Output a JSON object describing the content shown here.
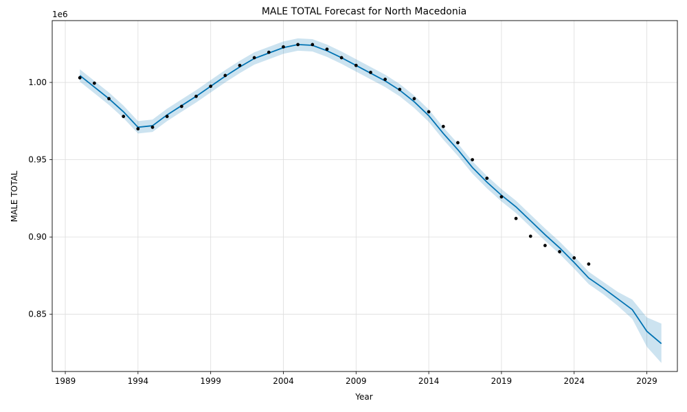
{
  "chart_data": {
    "type": "line",
    "title": "MALE TOTAL Forecast for North Macedonia",
    "xlabel": "Year",
    "ylabel": "MALE TOTAL",
    "y_offset_label": "1e6",
    "xlim": [
      1988.1,
      2031.1
    ],
    "ylim": [
      813000,
      1040000
    ],
    "x_ticks": [
      1989,
      1994,
      1999,
      2004,
      2009,
      2014,
      2019,
      2024,
      2029
    ],
    "y_ticks": [
      850000,
      900000,
      950000,
      1000000
    ],
    "y_tick_labels": [
      "0.85",
      "0.90",
      "0.95",
      "1.00"
    ],
    "grid": true,
    "colors": {
      "line": "#0072b2",
      "band": "#0072b2",
      "points": "#000000",
      "grid": "#dcdcdc"
    },
    "actual": {
      "x": [
        1990,
        1991,
        1992,
        1993,
        1994,
        1995,
        1996,
        1997,
        1998,
        1999,
        2000,
        2001,
        2002,
        2003,
        2004,
        2005,
        2006,
        2007,
        2008,
        2009,
        2010,
        2011,
        2012,
        2013,
        2014,
        2015,
        2016,
        2017,
        2018,
        2019,
        2020,
        2021,
        2022,
        2023,
        2024,
        2025
      ],
      "y": [
        1003000,
        999500,
        989500,
        978000,
        970000,
        971000,
        978000,
        984500,
        991000,
        997500,
        1004500,
        1011000,
        1016000,
        1019500,
        1023000,
        1024500,
        1024500,
        1021500,
        1016000,
        1011000,
        1006500,
        1002000,
        995500,
        989500,
        981000,
        971500,
        961000,
        950000,
        938000,
        926000,
        912000,
        900500,
        894500,
        890500,
        886500,
        882500
      ]
    },
    "forecast": {
      "x": [
        1990,
        1991,
        1992,
        1993,
        1994,
        1995,
        1996,
        1997,
        1998,
        1999,
        2000,
        2001,
        2002,
        2003,
        2004,
        2005,
        2006,
        2007,
        2008,
        2009,
        2010,
        2011,
        2012,
        2013,
        2014,
        2015,
        2016,
        2017,
        2018,
        2019,
        2020,
        2021,
        2022,
        2023,
        2024,
        2025,
        2026,
        2027,
        2028,
        2029,
        2030
      ],
      "y": [
        1004500,
        997000,
        989500,
        981000,
        971000,
        972000,
        979000,
        985000,
        991000,
        997500,
        1004000,
        1010000,
        1015500,
        1019000,
        1022500,
        1024500,
        1024000,
        1020500,
        1016000,
        1011000,
        1006000,
        1001000,
        995000,
        987500,
        978500,
        967000,
        956500,
        945000,
        935500,
        927000,
        919500,
        910500,
        901500,
        893000,
        883500,
        873500,
        867000,
        860000,
        853000,
        839000,
        831000
      ],
      "upper": [
        1008500,
        1001000,
        993500,
        985000,
        975000,
        976000,
        983000,
        989000,
        995000,
        1001500,
        1008000,
        1014000,
        1019500,
        1023000,
        1026500,
        1028500,
        1028000,
        1024500,
        1020000,
        1015000,
        1010000,
        1005000,
        999000,
        991500,
        982500,
        971000,
        960500,
        949000,
        939500,
        931000,
        923500,
        914500,
        905500,
        897000,
        887500,
        877500,
        871000,
        864500,
        859500,
        848000,
        844000
      ],
      "lower": [
        1000500,
        993000,
        985500,
        977000,
        967000,
        968000,
        975000,
        981000,
        987000,
        993500,
        1000000,
        1006000,
        1011500,
        1015000,
        1018500,
        1020500,
        1020000,
        1016500,
        1012000,
        1007000,
        1002000,
        997000,
        991000,
        983500,
        974500,
        963000,
        952500,
        941000,
        931500,
        923000,
        915500,
        906500,
        897500,
        889000,
        879500,
        869500,
        863000,
        855500,
        847000,
        829000,
        818500
      ]
    }
  }
}
